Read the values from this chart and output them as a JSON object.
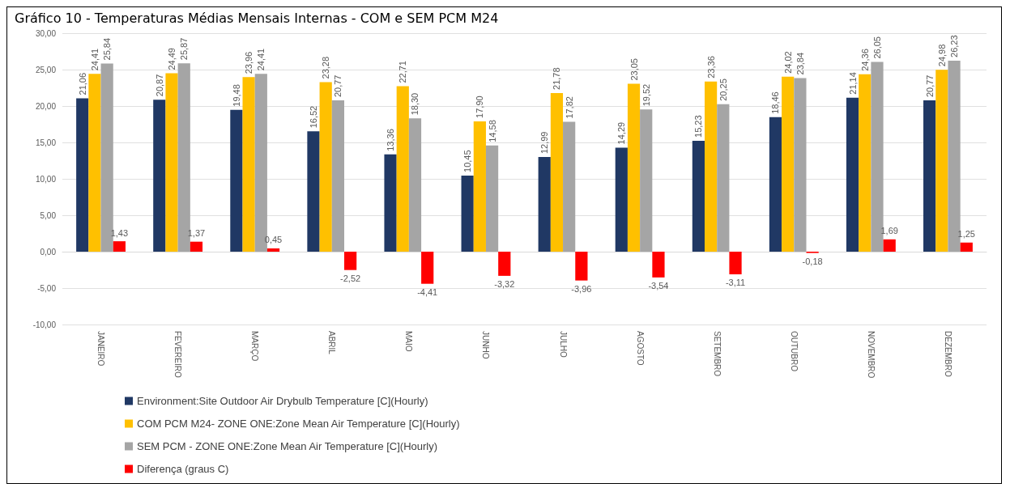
{
  "chart_data": {
    "type": "bar",
    "title": "Gráfico 10 - Temperaturas Médias Mensais Internas - COM e SEM PCM M24",
    "categories": [
      "JANEIRO",
      "FEVEREIRO",
      "MARÇO",
      "ABRIL",
      "MAIO",
      "JUNHO",
      "JULHO",
      "AGOSTO",
      "SETEMBRO",
      "OUTUBRO",
      "NOVEMBRO",
      "DEZEMBRO"
    ],
    "series": [
      {
        "name": "Environment:Site Outdoor Air Drybulb Temperature [C](Hourly)",
        "color": "#203864",
        "values": [
          21.06,
          20.87,
          19.48,
          16.52,
          13.36,
          10.45,
          12.99,
          14.29,
          15.23,
          18.46,
          21.14,
          20.77
        ],
        "value_labels": [
          "21,06",
          "20,87",
          "19,48",
          "16,52",
          "13,36",
          "10,45",
          "12,99",
          "14,29",
          "15,23",
          "18,46",
          "21,14",
          "20,77"
        ]
      },
      {
        "name": "COM PCM M24- ZONE ONE:Zone Mean Air Temperature [C](Hourly)",
        "color": "#ffc000",
        "values": [
          24.41,
          24.49,
          23.96,
          23.28,
          22.71,
          17.9,
          21.78,
          23.05,
          23.36,
          24.02,
          24.36,
          24.98
        ],
        "value_labels": [
          "24,41",
          "24,49",
          "23,96",
          "23,28",
          "22,71",
          "17,90",
          "21,78",
          "23,05",
          "23,36",
          "24,02",
          "24,36",
          "24,98"
        ]
      },
      {
        "name": "SEM PCM - ZONE ONE:Zone Mean Air Temperature [C](Hourly)",
        "color": "#a5a5a5",
        "values": [
          25.84,
          25.87,
          24.41,
          20.77,
          18.3,
          14.58,
          17.82,
          19.52,
          20.25,
          23.84,
          26.05,
          26.23
        ],
        "value_labels": [
          "25,84",
          "25,87",
          "24,41",
          "20,77",
          "18,30",
          "14,58",
          "17,82",
          "19,52",
          "20,25",
          "23,84",
          "26,05",
          "26,23"
        ]
      },
      {
        "name": "Diferença (graus C)",
        "color": "#ff0000",
        "values": [
          1.43,
          1.37,
          0.45,
          -2.52,
          -4.41,
          -3.32,
          -3.96,
          -3.54,
          -3.11,
          -0.18,
          1.69,
          1.25
        ],
        "value_labels": [
          "1,43",
          "1,37",
          "0,45",
          "-2,52",
          "-4,41",
          "-3,32",
          "-3,96",
          "-3,54",
          "-3,11",
          "-0,18",
          "1,69",
          "1,25"
        ]
      }
    ],
    "ylim": [
      -10,
      30
    ],
    "yticks": [
      {
        "value": -10,
        "label": "-10,00"
      },
      {
        "value": -5,
        "label": "-5,00"
      },
      {
        "value": 0,
        "label": "0,00"
      },
      {
        "value": 5,
        "label": "5,00"
      },
      {
        "value": 10,
        "label": "10,00"
      },
      {
        "value": 15,
        "label": "15,00"
      },
      {
        "value": 20,
        "label": "20,00"
      },
      {
        "value": 25,
        "label": "25,00"
      },
      {
        "value": 30,
        "label": "30,00"
      }
    ],
    "grid": "y",
    "legend": "bottom left"
  }
}
